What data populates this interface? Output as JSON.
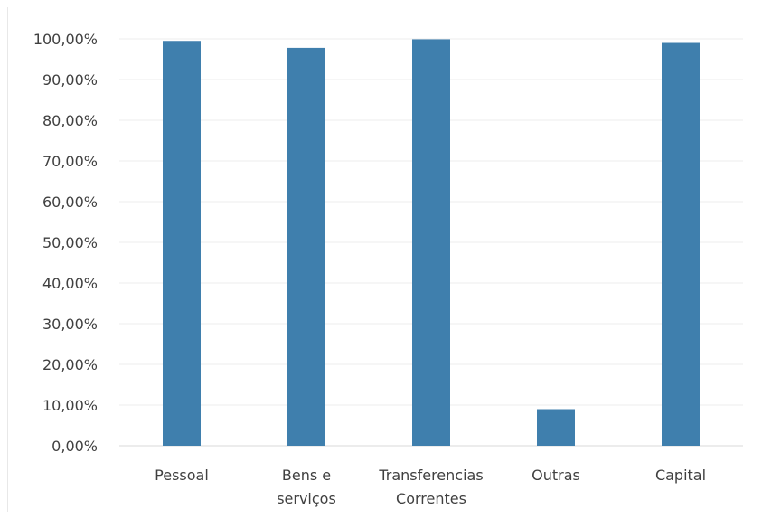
{
  "chart_data": {
    "type": "bar",
    "title": "",
    "xlabel": "",
    "ylabel": "",
    "categories": [
      [
        "Pessoal"
      ],
      [
        "Bens e",
        "serviços"
      ],
      [
        "Transferencias",
        "Correntes"
      ],
      [
        "Outras"
      ],
      [
        "Capital"
      ]
    ],
    "values": [
      99.5,
      97.8,
      99.9,
      9.0,
      99.0
    ],
    "value_format": "percent_2dp_comma",
    "ylim": [
      0,
      100
    ],
    "ytick_step": 10,
    "yticks": [
      "0,00%",
      "10,00%",
      "20,00%",
      "30,00%",
      "40,00%",
      "50,00%",
      "60,00%",
      "70,00%",
      "80,00%",
      "90,00%",
      "100,00%"
    ],
    "grid": true,
    "legend": "none",
    "colors": {
      "bar": "#3f7fad",
      "axis_text": "#404040",
      "gridline": "#eeeeee"
    }
  }
}
